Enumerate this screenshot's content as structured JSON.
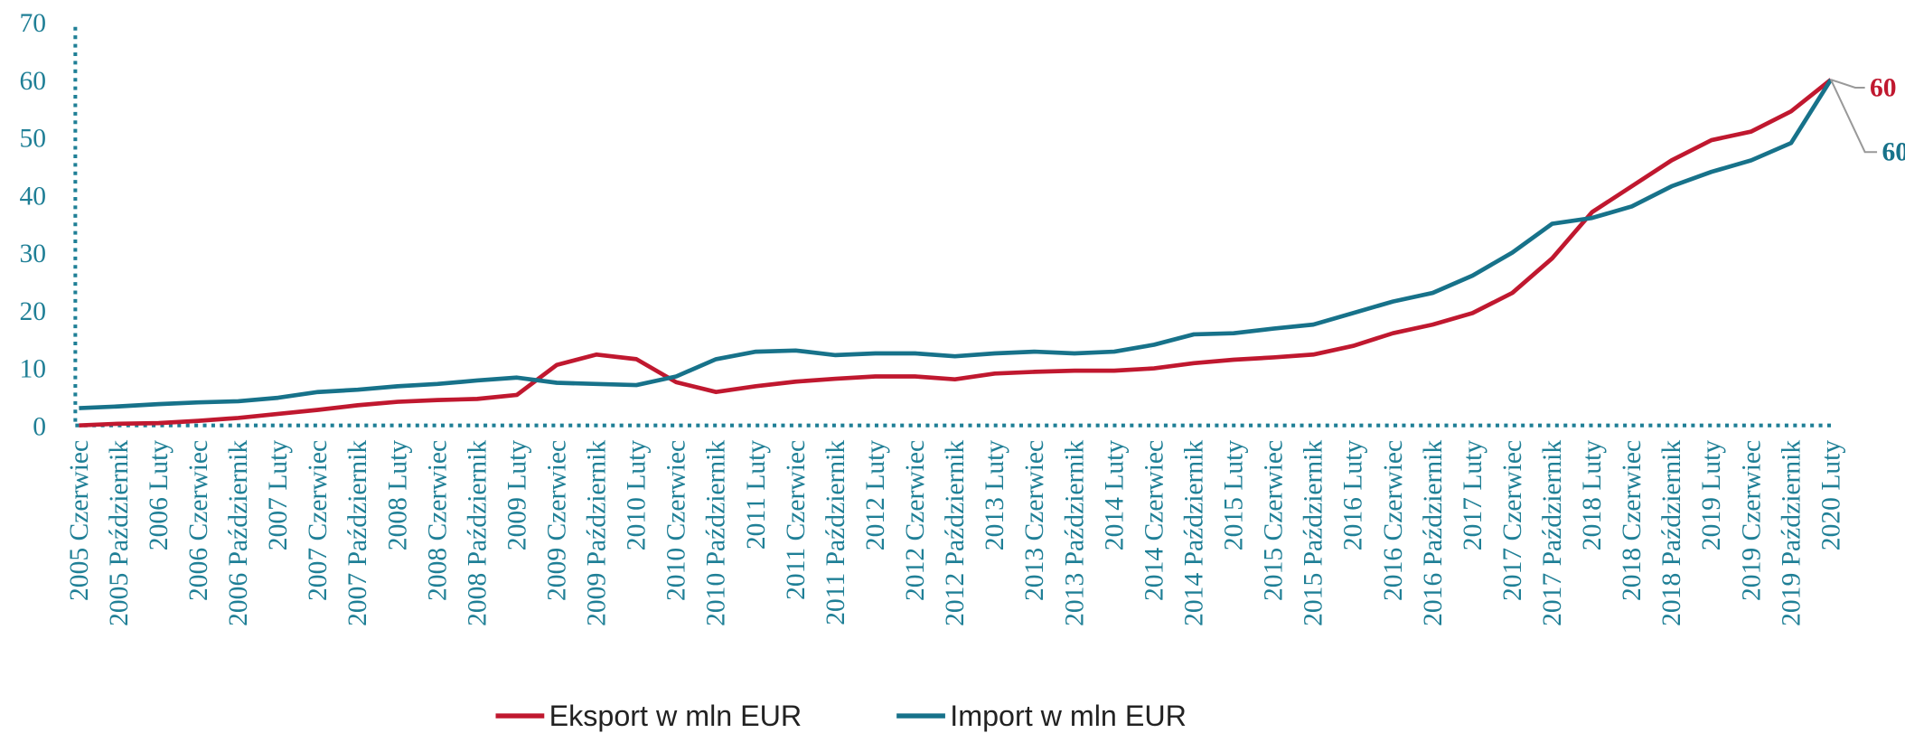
{
  "chart_data": {
    "type": "line",
    "categories": [
      "2005 Czerwiec",
      "2005 Październik",
      "2006 Luty",
      "2006 Czerwiec",
      "2006 Październik",
      "2007 Luty",
      "2007 Czerwiec",
      "2007 Październik",
      "2008 Luty",
      "2008 Czerwiec",
      "2008 Październik",
      "2009 Luty",
      "2009 Czerwiec",
      "2009 Październik",
      "2010 Luty",
      "2010 Czerwiec",
      "2010 Październik",
      "2011 Luty",
      "2011 Czerwiec",
      "2011 Październik",
      "2012 Luty",
      "2012 Czerwiec",
      "2012 Październik",
      "2013 Luty",
      "2013 Czerwiec",
      "2013 Październik",
      "2014 Luty",
      "2014 Czerwiec",
      "2014 Październik",
      "2015 Luty",
      "2015 Czerwiec",
      "2015 Październik",
      "2016 Luty",
      "2016 Czerwiec",
      "2016 Październik",
      "2017 Luty",
      "2017 Czerwiec",
      "2017 Październik",
      "2018 Luty",
      "2018 Czerwiec",
      "2018 Październik",
      "2019 Luty",
      "2019 Czerwiec",
      "2019 Październik",
      "2020 Luty"
    ],
    "series": [
      {
        "name": "Eksport w mln EUR",
        "color": "#c0182f",
        "values": [
          0,
          0.3,
          0.4,
          0.8,
          1.3,
          2,
          2.7,
          3.5,
          4.1,
          4.4,
          4.6,
          5.3,
          10.5,
          12.3,
          11.5,
          7.5,
          5.8,
          6.8,
          7.6,
          8.1,
          8.5,
          8.5,
          8,
          9,
          9.3,
          9.5,
          9.5,
          9.9,
          10.8,
          11.4,
          11.8,
          12.3,
          13.8,
          16,
          17.5,
          19.5,
          23,
          29,
          37,
          41.5,
          46,
          49.5,
          51,
          54.5,
          60
        ]
      },
      {
        "name": "Import w mln EUR",
        "color": "#17728a",
        "values": [
          3,
          3.3,
          3.7,
          4,
          4.2,
          4.8,
          5.8,
          6.2,
          6.8,
          7.2,
          7.8,
          8.3,
          7.4,
          7.2,
          7,
          8.5,
          11.5,
          12.8,
          13,
          12.2,
          12.5,
          12.5,
          12,
          12.5,
          12.8,
          12.5,
          12.8,
          14,
          15.8,
          16,
          16.8,
          17.5,
          19.5,
          21.5,
          23,
          26,
          30,
          35,
          36,
          38,
          41.5,
          44,
          46,
          49,
          60
        ]
      }
    ],
    "ylim": [
      0,
      70
    ],
    "yticks": [
      0,
      10,
      20,
      30,
      40,
      50,
      60,
      70
    ],
    "grid": false
  }
}
